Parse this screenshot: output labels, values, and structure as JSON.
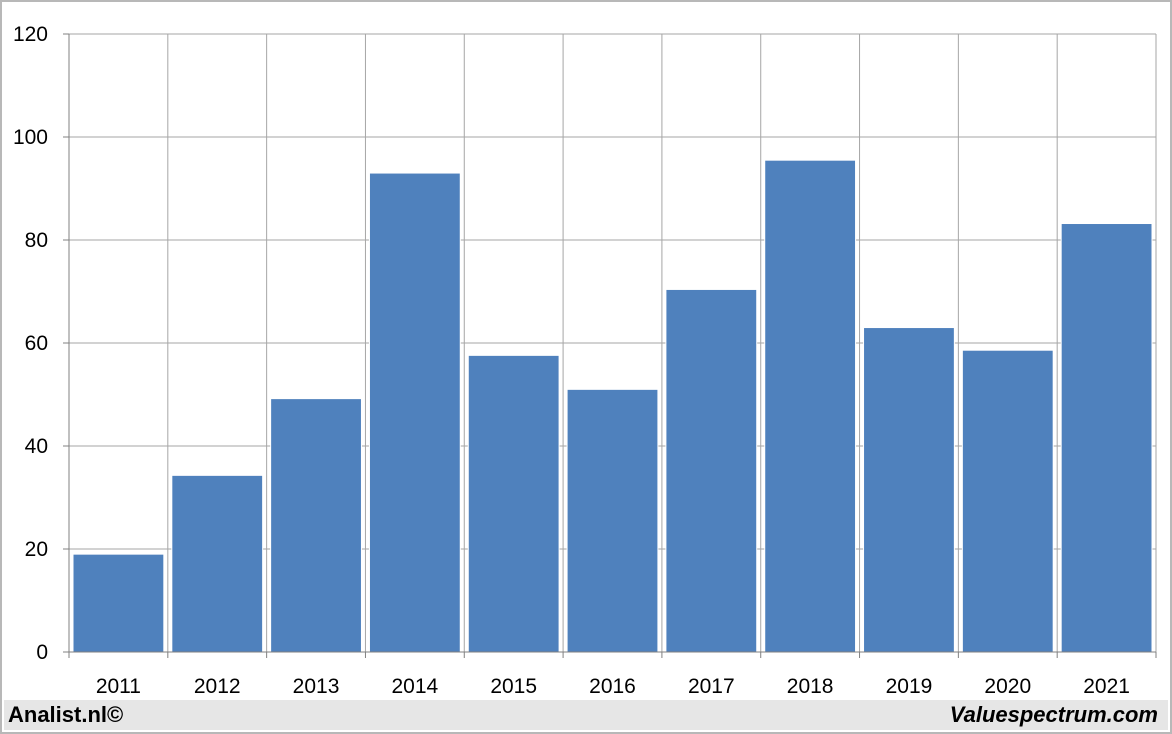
{
  "chart_data": {
    "type": "bar",
    "categories": [
      "2011",
      "2012",
      "2013",
      "2014",
      "2015",
      "2016",
      "2017",
      "2018",
      "2019",
      "2020",
      "2021"
    ],
    "values": [
      19,
      34.3,
      49.2,
      93,
      57.6,
      51,
      70.4,
      95.5,
      63,
      58.6,
      83.2
    ],
    "ylim": [
      0,
      120
    ],
    "yticks": [
      0,
      20,
      40,
      60,
      80,
      100,
      120
    ],
    "grid": true,
    "bar_color": "#4f81bd",
    "grid_color": "#a6a6a6"
  },
  "footer": {
    "left": "Analist.nl©",
    "right": "Valuespectrum.com"
  }
}
